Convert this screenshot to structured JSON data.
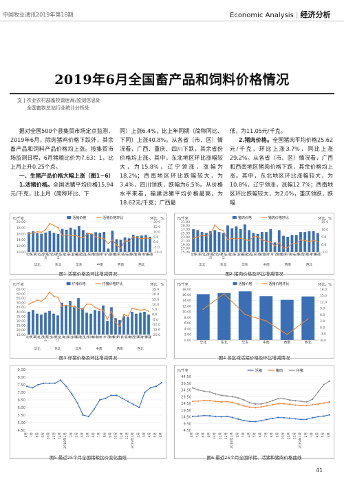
{
  "header": {
    "left": "中国牧业通讯2019年第18期",
    "right_en": "Economic Analysis",
    "right_sep": "|",
    "right_cn": "经济分析"
  },
  "article": {
    "title": "2019年6月全国畜产品和饲料价格情况",
    "authors_line1": "文 | 农业农村部畜牧兽医局/监测信息处",
    "authors_line2": "全国畜牧总站行业统计分析处",
    "col1_p1": "据对全国500个县集贸市场定点监测，2019年6月，除肉猪鸡价格下跌外，其余畜产品和饲料产品价格均上涨。按集贸市场监测日程，6月猪粮比价为7.63：1，比上月上升0.25个点。",
    "col1_h1": "一、生猪产品价格大幅上涨（图1~6）",
    "col1_p2_head": "1.活猪价格。",
    "col1_p2": "全国活猪平均价格15.94元/千克，比上月（简称环比、下",
    "col2_p1": "同）上涨6.4%，比上年同期（简称同比、下同）上涨40.8%。从各省（市、区）情况看，广西、重庆、四川下跌，其余省份价格均上涨。其中，东北地区环比涨幅较大，为15.8%，辽宁领涨，涨幅为18.2%；西南地区环比跌幅较大，为3.4%，四川领跌，跌幅为6.5%。从价格水平来看，福建活猪平均价格最高，为18.62元/千克；广西最",
    "col3_p0": "低，为11.05元/千克。",
    "col3_p1_head": "2.猪肉价格。",
    "col3_p1": "全国猪肉平均价格25.62元/千克，环比上涨3.7%，同比上涨29.2%。从各省（市、区）情况看，广西和西南地区猪肉价格下跌，其余价格均上涨。其中，东北地区环比涨幅较大，为10.8%，辽宁领涨，涨幅12.7%；西南地区环比跌幅较大，为2.0%，重庆领跌，跌幅"
  },
  "colors": {
    "bar": "#3a6fb5",
    "line": "#e8873a",
    "gray": "#8a8a8a",
    "grid": "#e6e6e6"
  },
  "chart_data": [
    {
      "type": "bar",
      "caption": "图1 活猪价格及环比增减情况",
      "ylabel_left": "元/千克",
      "ylabel_right": "环比，%",
      "legend": [
        "活猪价格",
        "活猪价格环比"
      ],
      "left_ticks": [
        "20.00",
        "18.00",
        "16.00",
        "14.00",
        "12.00",
        "10.00"
      ],
      "right_ticks": [
        "20.0",
        "15.0",
        "10.0",
        "5.0",
        "0.0",
        "-5.0",
        "-10.0"
      ],
      "ylim": [
        10,
        20
      ],
      "y2lim": [
        -10,
        20
      ],
      "categories": [
        "北京",
        "天津",
        "河北",
        "山西",
        "内蒙古",
        "辽宁",
        "吉林",
        "黑龙江",
        "上海",
        "江苏",
        "浙江",
        "安徽",
        "福建",
        "江西",
        "山东",
        "河南",
        "湖北",
        "湖南",
        "广东",
        "广西",
        "海南",
        "重庆",
        "四川",
        "贵州",
        "云南",
        "陕西",
        "甘肃",
        "青海",
        "宁夏",
        "新疆"
      ],
      "series": [
        {
          "name": "活猪价格",
          "values": [
            16.5,
            16.8,
            16.2,
            16.0,
            16.4,
            16.9,
            16.3,
            15.9,
            17.6,
            17.3,
            18.0,
            17.4,
            18.6,
            17.2,
            16.3,
            16.0,
            16.5,
            16.3,
            16.6,
            11.1,
            17.0,
            14.2,
            14.0,
            14.8,
            14.5,
            15.7,
            15.2,
            15.4,
            15.6,
            15.0
          ]
        },
        {
          "name": "活猪价格环比",
          "values": [
            8.0,
            9.0,
            10.0,
            9.5,
            12.0,
            18.2,
            16.0,
            14.0,
            6.0,
            7.0,
            6.0,
            6.5,
            5.0,
            4.0,
            8.0,
            8.0,
            5.0,
            4.0,
            3.0,
            -2.0,
            2.0,
            -3.0,
            -6.5,
            1.0,
            0.5,
            5.0,
            4.0,
            3.0,
            4.0,
            3.0
          ]
        }
      ],
      "groups": [
        "华北",
        "东北",
        "华东",
        "中南",
        "西南",
        "西北"
      ]
    },
    {
      "type": "bar",
      "caption": "图2 猪肉价格及环比增减情况",
      "ylabel_left": "元/千克",
      "ylabel_right": "环比，%",
      "legend": [
        "猪肉价格",
        "猪肉价格环比"
      ],
      "left_ticks": [
        "31.00",
        "29.00",
        "27.00",
        "25.00",
        "23.00",
        "21.00",
        "19.00",
        "17.00",
        "15.00"
      ],
      "right_ticks": [
        "15.0",
        "10.0",
        "5.0",
        "0.0",
        "-5.0"
      ],
      "ylim": [
        15,
        31
      ],
      "y2lim": [
        -5,
        15
      ],
      "categories": [
        "北京",
        "天津",
        "河北",
        "山西",
        "内蒙古",
        "辽宁",
        "吉林",
        "黑龙江",
        "上海",
        "江苏",
        "浙江",
        "安徽",
        "福建",
        "江西",
        "山东",
        "河南",
        "湖北",
        "湖南",
        "广东",
        "广西",
        "海南",
        "重庆",
        "四川",
        "贵州",
        "云南",
        "陕西",
        "甘肃",
        "青海",
        "宁夏",
        "新疆"
      ],
      "series": [
        {
          "name": "猪肉价格",
          "values": [
            27.0,
            26.5,
            25.5,
            25.0,
            26.0,
            26.5,
            25.5,
            25.0,
            29.0,
            27.5,
            28.5,
            27.0,
            29.5,
            26.5,
            25.0,
            24.5,
            25.5,
            25.5,
            27.0,
            20.0,
            26.5,
            23.5,
            23.0,
            24.0,
            24.0,
            25.5,
            25.5,
            26.0,
            26.0,
            25.0
          ]
        },
        {
          "name": "猪肉价格环比",
          "values": [
            4.0,
            5.0,
            6.0,
            5.5,
            7.0,
            12.7,
            10.0,
            9.0,
            3.0,
            4.0,
            3.5,
            4.0,
            3.0,
            2.5,
            5.0,
            5.0,
            3.0,
            2.0,
            1.5,
            -1.0,
            1.0,
            -2.5,
            -2.0,
            0.5,
            0.5,
            3.0,
            2.5,
            2.0,
            2.5,
            2.0
          ]
        }
      ],
      "groups": [
        "华北",
        "东北",
        "华东",
        "中南",
        "西南",
        "西北"
      ]
    },
    {
      "type": "bar",
      "caption": "图3 仔猪价格及环比增减情况",
      "ylabel_left": "元/千克",
      "ylabel_right": "环比，%",
      "legend": [
        "仔猪价格",
        "仔猪价格环比"
      ],
      "left_ticks": [
        "65.00",
        "60.00",
        "55.00",
        "50.00",
        "45.00",
        "40.00",
        "35.00",
        "30.00",
        "25.00",
        "20.00",
        "15.00"
      ],
      "right_ticks": [
        "25.0",
        "20.0",
        "15.0",
        "10.0",
        "5.0",
        "0.0",
        "-5.0",
        "-10.0",
        "-15.0",
        "-20.0"
      ],
      "ylim": [
        15,
        65
      ],
      "y2lim": [
        -20,
        25
      ],
      "categories": [
        "北京",
        "天津",
        "河北",
        "山西",
        "内蒙古",
        "辽宁",
        "吉林",
        "黑龙江",
        "上海",
        "江苏",
        "浙江",
        "安徽",
        "福建",
        "江西",
        "山东",
        "河南",
        "湖北",
        "湖南",
        "广东",
        "广西",
        "海南",
        "重庆",
        "四川",
        "贵州",
        "云南",
        "陕西",
        "甘肃",
        "青海",
        "宁夏",
        "新疆"
      ],
      "series": [
        {
          "name": "仔猪价格",
          "values": [
            40,
            42,
            38,
            37,
            39,
            41,
            38,
            36,
            50,
            47,
            52,
            45,
            55,
            44,
            39,
            38,
            42,
            41,
            47,
            30,
            45,
            33,
            31,
            35,
            34,
            40,
            38,
            39,
            40,
            37
          ]
        },
        {
          "name": "仔猪价格环比",
          "values": [
            10,
            12,
            14,
            13,
            16,
            22,
            18,
            17,
            8,
            9,
            8,
            8,
            6,
            5,
            10,
            10,
            7,
            5,
            4,
            -5,
            3,
            -8,
            -12,
            0,
            -2,
            6,
            5,
            4,
            5,
            3
          ]
        }
      ],
      "groups": [
        "华北",
        "东北",
        "华东",
        "中南",
        "西南",
        "西北"
      ]
    },
    {
      "type": "bar",
      "caption": "图4 各区域活猪价格及环比增减情况",
      "ylabel_left": "元/千克",
      "ylabel_right": "环比，%",
      "legend": [
        "活猪价格",
        "活猪价格环比"
      ],
      "left_ticks": [
        "18.00",
        "16.00",
        "14.00",
        "12.00",
        "10.00",
        "8.00",
        "6.00",
        "4.00",
        "2.00",
        "0.00"
      ],
      "right_ticks": [
        "18.0",
        "15.0",
        "12.0",
        "9.0",
        "6.0",
        "3.0",
        "0.0",
        "-3.0",
        "-6.0"
      ],
      "ylim": [
        0,
        18
      ],
      "y2lim": [
        -6,
        18
      ],
      "categories": [
        "华北",
        "东北",
        "华东",
        "中南",
        "西南",
        "西北"
      ],
      "series": [
        {
          "name": "活猪价格",
          "values": [
            16.2,
            16.6,
            17.2,
            15.5,
            14.2,
            15.4
          ]
        },
        {
          "name": "活猪价格环比",
          "values": [
            8.5,
            15.8,
            6.0,
            3.0,
            -3.4,
            4.0
          ]
        }
      ]
    },
    {
      "type": "line",
      "caption": "图5 最近25个月全国猪粮比价变化曲线",
      "left_ticks": [
        "9.00",
        "8.00",
        "7.50",
        "7.00",
        "6.50",
        "6.00",
        "5.50",
        "5.00",
        "4.50"
      ],
      "ylim": [
        4.5,
        9.0
      ],
      "x": [
        "6月",
        "7月",
        "8月",
        "9月",
        "10月",
        "11月",
        "12月",
        "2018年1月",
        "2月",
        "3月",
        "4月",
        "5月",
        "6月",
        "7月",
        "8月",
        "9月",
        "10月",
        "11月",
        "12月",
        "2019年1月",
        "2月",
        "3月",
        "4月",
        "5月",
        "6月"
      ],
      "series": [
        {
          "name": "猪粮比价",
          "values": [
            7.4,
            7.3,
            7.5,
            7.6,
            7.6,
            7.6,
            7.8,
            7.4,
            6.9,
            6.3,
            5.5,
            5.4,
            5.9,
            6.5,
            6.6,
            6.8,
            6.8,
            6.6,
            6.4,
            6.2,
            6.0,
            7.0,
            7.3,
            7.4,
            7.63
          ]
        }
      ]
    },
    {
      "type": "line",
      "caption": "图6 最近25个月全国仔猪、活猪和猪肉价格曲线",
      "ylabel": "元/千克",
      "legend": [
        "活猪",
        "猪肉",
        "仔猪"
      ],
      "left_ticks": [
        "44.50",
        "39.50",
        "34.50",
        "29.50",
        "24.50",
        "19.50",
        "14.50",
        "9.50",
        "4.50"
      ],
      "ylim": [
        4.5,
        44.5
      ],
      "x": [
        "6月",
        "7月",
        "8月",
        "9月",
        "10月",
        "11月",
        "12月",
        "2018年1月",
        "2月",
        "3月",
        "4月",
        "5月",
        "6月",
        "7月",
        "8月",
        "9月",
        "10月",
        "11月",
        "12月",
        "2019年1月",
        "2月",
        "3月",
        "4月",
        "5月",
        "6月"
      ],
      "series": [
        {
          "name": "活猪",
          "values": [
            14.8,
            15.0,
            15.4,
            15.2,
            14.8,
            14.5,
            14.8,
            14.0,
            12.8,
            11.7,
            11.0,
            10.9,
            11.5,
            12.5,
            13.2,
            14.0,
            13.8,
            13.4,
            13.0,
            12.5,
            12.6,
            13.8,
            14.5,
            15.0,
            15.94
          ]
        },
        {
          "name": "猪肉",
          "values": [
            26.0,
            26.2,
            26.6,
            26.5,
            26.0,
            25.6,
            25.8,
            25.2,
            23.9,
            22.6,
            21.6,
            21.3,
            21.8,
            22.7,
            23.5,
            24.2,
            24.2,
            23.8,
            23.2,
            22.8,
            22.9,
            23.5,
            24.0,
            24.7,
            25.62
          ]
        },
        {
          "name": "仔猪",
          "values": [
            36.0,
            34.5,
            33.5,
            33.0,
            31.5,
            30.5,
            30.0,
            29.5,
            28.5,
            27.0,
            25.0,
            24.0,
            24.0,
            25.0,
            26.5,
            28.0,
            28.0,
            27.0,
            26.5,
            26.0,
            25.5,
            27.5,
            33.0,
            38.5,
            41.0
          ]
        }
      ]
    }
  ],
  "page_number": "41"
}
